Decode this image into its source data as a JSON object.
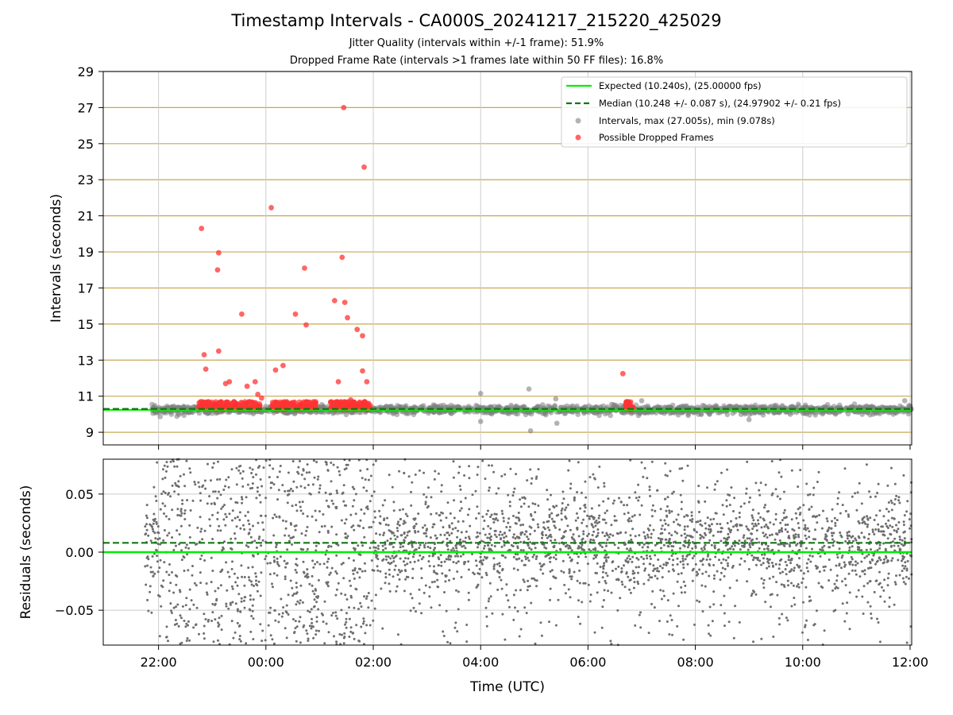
{
  "title": "Timestamp Intervals - CA000S_20241217_215220_425029",
  "subtitle1": "Jitter Quality (intervals within +/-1 frame): 51.9%",
  "subtitle2": "Dropped Frame Rate (intervals >1 frames late within 50 FF files): 16.8%",
  "colors": {
    "expected": "#00ee00",
    "median": "#117711",
    "intervals": "#808080",
    "dropped": "#ff3333",
    "hgrid": "#c8a850",
    "vgrid": "#cccccc"
  },
  "chart_data": [
    {
      "type": "scatter",
      "name": "intervals-panel",
      "xlabel": "",
      "ylabel": "Intervals (seconds)",
      "x_unit": "hours since 21:00 UTC (day 1); ticks labelled as clock time",
      "xlim": [
        -0.03,
        15.03
      ],
      "ylim": [
        8.3,
        29
      ],
      "yticks": [
        9,
        11,
        13,
        15,
        17,
        19,
        21,
        23,
        25,
        27,
        29
      ],
      "ytick_labels": [
        "9",
        "11",
        "13",
        "15",
        "17",
        "19",
        "21",
        "23",
        "25",
        "27",
        "29"
      ],
      "xticks": [
        1,
        3,
        5,
        7,
        9,
        11,
        13,
        15
      ],
      "grid": "horizontal gold lines at y ticks, vertical grey lines at x ticks",
      "legend_placement": "top-right",
      "legend": [
        "Expected (10.240s), (25.00000 fps)",
        "Median (10.248 +/- 0.087 s), (24.97902 +/- 0.21 fps)",
        "Intervals, max (27.005s), min (9.078s)",
        "Possible Dropped Frames"
      ],
      "expected": 10.24,
      "median": 10.248,
      "intervals_band": {
        "x_start": 0.87,
        "x_end": 15.03,
        "y_mean": 10.248,
        "y_spread": 0.2
      },
      "interval_outliers": [
        {
          "x": 7.0,
          "y": 11.15
        },
        {
          "x": 7.0,
          "y": 9.6
        },
        {
          "x": 7.9,
          "y": 11.4
        },
        {
          "x": 7.93,
          "y": 9.08
        },
        {
          "x": 8.4,
          "y": 10.85
        },
        {
          "x": 8.42,
          "y": 9.5
        },
        {
          "x": 10.0,
          "y": 10.75
        },
        {
          "x": 12.0,
          "y": 9.7
        },
        {
          "x": 14.9,
          "y": 10.75
        }
      ],
      "dropped_clusters": [
        {
          "x_start": 1.75,
          "x_end": 2.9
        },
        {
          "x_start": 3.1,
          "x_end": 3.95
        },
        {
          "x_start": 4.2,
          "x_end": 4.95
        },
        {
          "x_start": 9.7,
          "x_end": 9.85
        }
      ],
      "dropped_frames": [
        {
          "x": 1.8,
          "y": 20.3
        },
        {
          "x": 1.85,
          "y": 13.3
        },
        {
          "x": 1.88,
          "y": 12.5
        },
        {
          "x": 2.1,
          "y": 18.0
        },
        {
          "x": 2.12,
          "y": 18.95
        },
        {
          "x": 2.12,
          "y": 13.5
        },
        {
          "x": 2.25,
          "y": 11.7
        },
        {
          "x": 2.32,
          "y": 11.8
        },
        {
          "x": 2.55,
          "y": 15.55
        },
        {
          "x": 2.65,
          "y": 11.55
        },
        {
          "x": 2.8,
          "y": 11.8
        },
        {
          "x": 2.85,
          "y": 11.1
        },
        {
          "x": 2.92,
          "y": 10.9
        },
        {
          "x": 3.1,
          "y": 21.45
        },
        {
          "x": 3.18,
          "y": 12.45
        },
        {
          "x": 3.32,
          "y": 12.7
        },
        {
          "x": 3.55,
          "y": 15.55
        },
        {
          "x": 3.72,
          "y": 18.1
        },
        {
          "x": 3.75,
          "y": 14.95
        },
        {
          "x": 4.28,
          "y": 16.3
        },
        {
          "x": 4.35,
          "y": 11.8
        },
        {
          "x": 4.42,
          "y": 18.7
        },
        {
          "x": 4.45,
          "y": 27.0
        },
        {
          "x": 4.47,
          "y": 16.2
        },
        {
          "x": 4.52,
          "y": 15.35
        },
        {
          "x": 4.58,
          "y": 10.8
        },
        {
          "x": 4.7,
          "y": 14.7
        },
        {
          "x": 4.8,
          "y": 14.35
        },
        {
          "x": 4.8,
          "y": 12.4
        },
        {
          "x": 4.83,
          "y": 23.7
        },
        {
          "x": 4.88,
          "y": 11.8
        },
        {
          "x": 9.65,
          "y": 12.25
        }
      ]
    },
    {
      "type": "scatter",
      "name": "residuals-panel",
      "xlabel": "Time (UTC)",
      "ylabel": "Residuals (seconds)",
      "xlim": [
        -0.03,
        15.03
      ],
      "ylim": [
        -0.08,
        0.08
      ],
      "yticks": [
        -0.05,
        0.0,
        0.05
      ],
      "ytick_labels": [
        "−0.05",
        "0.00",
        "0.05"
      ],
      "xticks": [
        1,
        3,
        5,
        7,
        9,
        11,
        13,
        15
      ],
      "xtick_labels": [
        "22:00",
        "00:00",
        "02:00",
        "04:00",
        "06:00",
        "08:00",
        "10:00",
        "12:00"
      ],
      "grid": "grey lines at x and y ticks",
      "expected": 0.0,
      "median": 0.008,
      "points_band": {
        "x_start": 0.75,
        "x_end": 15.03,
        "dense_limit": 0.03
      }
    }
  ]
}
